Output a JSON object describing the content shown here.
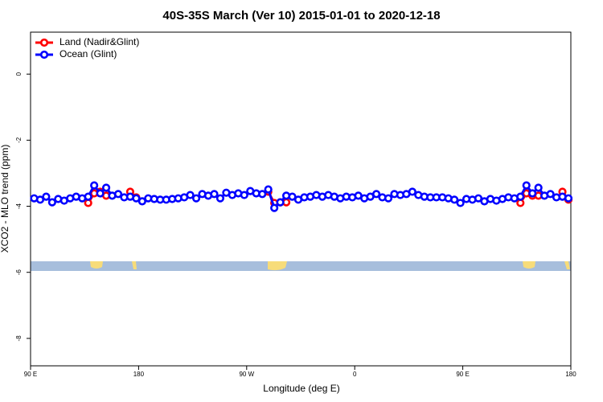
{
  "chart_data": {
    "type": "line",
    "title": "40S-35S March (Ver 10)   2015-01-01 to 2020-12-18",
    "xlabel": "Longitude (deg E)",
    "ylabel": "XCO2 - MLO trend (ppm)",
    "x": [
      93,
      98,
      103,
      108,
      113,
      118,
      123,
      128,
      133,
      138,
      143,
      148,
      153,
      158,
      163,
      168,
      173,
      178,
      183,
      188,
      193,
      198,
      203,
      208,
      213,
      218,
      223,
      228,
      233,
      238,
      243,
      248,
      253,
      258,
      263,
      268,
      273,
      278,
      283,
      288,
      293,
      298,
      303,
      308,
      313,
      318,
      323,
      328,
      333,
      338,
      343,
      348,
      353,
      358,
      363,
      368,
      373,
      378,
      383,
      388,
      393,
      398,
      403,
      408,
      413,
      418,
      423,
      428,
      433,
      438,
      443,
      448,
      453,
      458,
      463,
      468,
      473,
      478,
      483,
      488,
      493,
      498,
      503,
      508,
      513,
      518,
      523,
      528,
      533,
      538
    ],
    "series": [
      {
        "name": "Land (Nadir&Glint)",
        "color": "#ff0000",
        "values": [
          null,
          null,
          null,
          null,
          null,
          null,
          null,
          null,
          null,
          -3.9,
          -3.61,
          -3.56,
          -3.68,
          null,
          null,
          null,
          -3.56,
          -3.73,
          null,
          null,
          null,
          null,
          null,
          null,
          null,
          null,
          null,
          null,
          null,
          null,
          null,
          null,
          null,
          null,
          null,
          null,
          null,
          null,
          null,
          -3.56,
          -3.9,
          -3.88,
          -3.88,
          null,
          null,
          null,
          null,
          null,
          null,
          null,
          null,
          null,
          null,
          null,
          null,
          null,
          null,
          null,
          null,
          null,
          null,
          null,
          null,
          null,
          null,
          null,
          null,
          null,
          null,
          null,
          null,
          null,
          null,
          null,
          null,
          null,
          null,
          null,
          null,
          null,
          null,
          -3.9,
          -3.61,
          -3.68,
          -3.68,
          null,
          null,
          null,
          -3.56,
          -3.8
        ]
      },
      {
        "name": "Ocean (Glint)",
        "color": "#0000ff",
        "values": [
          -3.76,
          -3.8,
          -3.71,
          -3.88,
          -3.78,
          -3.83,
          -3.76,
          -3.71,
          -3.76,
          -3.71,
          -3.37,
          -3.61,
          -3.44,
          -3.68,
          -3.63,
          -3.73,
          -3.71,
          -3.76,
          -3.85,
          -3.76,
          -3.78,
          -3.8,
          -3.8,
          -3.78,
          -3.76,
          -3.73,
          -3.66,
          -3.76,
          -3.63,
          -3.68,
          -3.63,
          -3.76,
          -3.59,
          -3.66,
          -3.61,
          -3.66,
          -3.54,
          -3.61,
          -3.63,
          -3.49,
          -4.05,
          -3.88,
          -3.68,
          -3.71,
          -3.8,
          -3.73,
          -3.71,
          -3.66,
          -3.71,
          -3.66,
          -3.71,
          -3.76,
          -3.71,
          -3.73,
          -3.68,
          -3.76,
          -3.71,
          -3.63,
          -3.73,
          -3.76,
          -3.63,
          -3.66,
          -3.63,
          -3.56,
          -3.66,
          -3.71,
          -3.73,
          -3.73,
          -3.73,
          -3.76,
          -3.8,
          -3.9,
          -3.78,
          -3.8,
          -3.76,
          -3.85,
          -3.78,
          -3.83,
          -3.78,
          -3.73,
          -3.76,
          -3.71,
          -3.37,
          -3.61,
          -3.44,
          -3.68,
          -3.63,
          -3.73,
          -3.71,
          -3.76
        ]
      }
    ],
    "xlim": [
      90,
      540
    ],
    "xticks": [
      {
        "value": 90,
        "label": "90 E"
      },
      180,
      {
        "value": 270,
        "label": "90 W"
      },
      {
        "value": 360,
        "label": "0"
      },
      {
        "value": 450,
        "label": "90 E"
      },
      {
        "value": 540,
        "label": "180"
      }
    ],
    "ylim": [
      -8.83,
      1.27
    ],
    "yticks": [
      0,
      -2,
      -4,
      -6,
      -8
    ],
    "legend": "top-left"
  }
}
